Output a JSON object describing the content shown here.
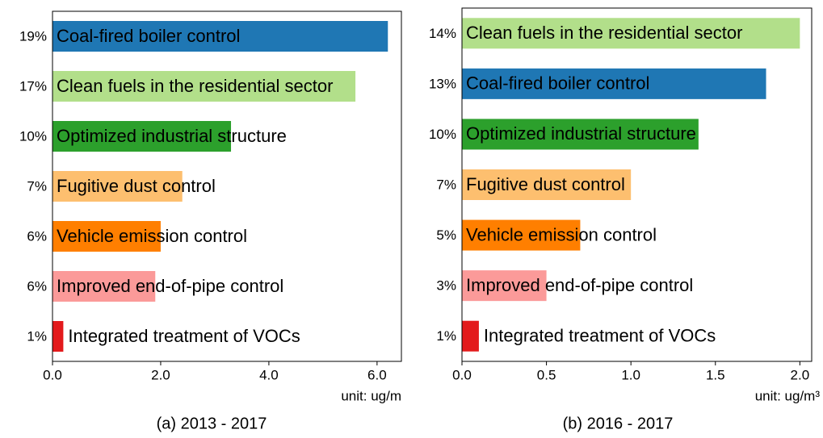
{
  "chart_data": [
    {
      "type": "barh",
      "categories": [
        "Coal-fired boiler control",
        "Clean fuels in the residential sector",
        "Optimized industrial structure",
        "Fugitive dust control",
        "Vehicle emission control",
        "Improved end-of-pipe control",
        "Integrated treatment of VOCs"
      ],
      "values": [
        6.2,
        5.6,
        3.3,
        2.4,
        2.0,
        1.9,
        0.2
      ],
      "share_labels": [
        "19%",
        "17%",
        "10%",
        "7%",
        "6%",
        "6%",
        "1%"
      ],
      "colors": [
        "#1f77b4",
        "#b2df8a",
        "#2ca02c",
        "#fdbf6f",
        "#ff7f00",
        "#fb9a99",
        "#e31a1c"
      ],
      "xlim": [
        0,
        6.45
      ],
      "xticks": [
        {
          "value": 0,
          "label": "0.0"
        },
        {
          "value": 2,
          "label": "2.0"
        },
        {
          "value": 4,
          "label": "4.0"
        },
        {
          "value": 6,
          "label": "6.0"
        }
      ],
      "xlabel": "unit:  ug/m",
      "caption": "(a)  2013 - 2017"
    },
    {
      "type": "barh",
      "categories": [
        "Clean fuels in the residential sector",
        "Coal-fired boiler control",
        "Optimized industrial structure",
        "Fugitive dust control",
        "Vehicle emission control",
        "Improved end-of-pipe control",
        "Integrated treatment of VOCs"
      ],
      "values": [
        2.0,
        1.8,
        1.4,
        1.0,
        0.7,
        0.5,
        0.1
      ],
      "share_labels": [
        "14%",
        "13%",
        "10%",
        "7%",
        "5%",
        "3%",
        "1%"
      ],
      "colors": [
        "#b2df8a",
        "#1f77b4",
        "#2ca02c",
        "#fdbf6f",
        "#ff7f00",
        "#fb9a99",
        "#e31a1c"
      ],
      "xlim": [
        0,
        2.07
      ],
      "xticks": [
        {
          "value": 0,
          "label": "0.0"
        },
        {
          "value": 0.5,
          "label": "0.5"
        },
        {
          "value": 1,
          "label": "1.0"
        },
        {
          "value": 1.5,
          "label": "1.5"
        },
        {
          "value": 2,
          "label": "2.0"
        }
      ],
      "xlabel": "unit:  ug/m³",
      "caption": "(b)  2016 - 2017"
    }
  ]
}
